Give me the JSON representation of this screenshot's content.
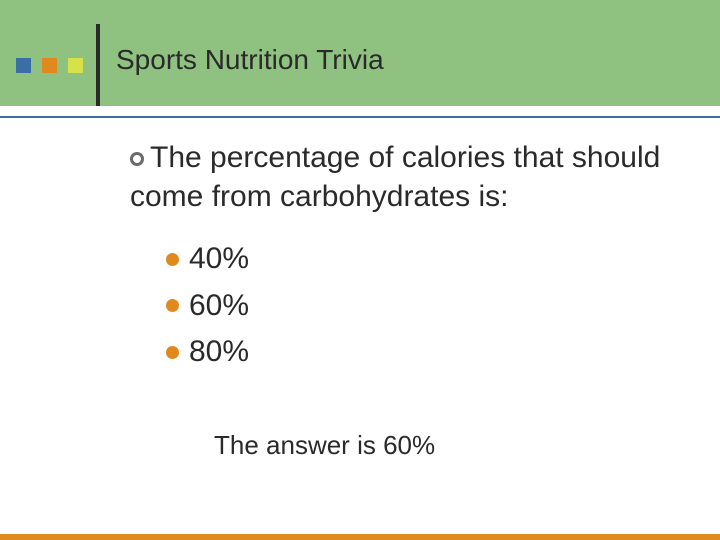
{
  "header": {
    "band_color": "#8fc180",
    "title": "Sports Nutrition Trivia",
    "title_fontsize": 28,
    "title_color": "#2a2a2a",
    "vert_line_color": "#2a2a2a",
    "side_squares": [
      {
        "color": "#3b6ea5"
      },
      {
        "color": "#e08a1e"
      },
      {
        "color": "#d7e24a"
      }
    ]
  },
  "divider_color": "#3b6ea5",
  "question": {
    "text": "The percentage of calories that should come from carbohydrates is:",
    "ring_color": "#6a6a6a",
    "fontsize": 30,
    "options": [
      {
        "label": "40%"
      },
      {
        "label": "60%"
      },
      {
        "label": "80%"
      }
    ],
    "option_bullet_color": "#e08a1e"
  },
  "answer": {
    "text": "The answer is 60%",
    "fontsize": 26
  },
  "footer_bar_color": "#e08a1e",
  "background_color": "#ffffff"
}
